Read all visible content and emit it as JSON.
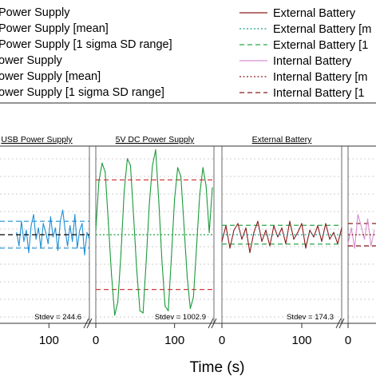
{
  "legend": {
    "left": [
      "Power Supply",
      "Power Supply [mean]",
      "Power Supply [1 sigma SD range]",
      "ower Supply",
      "ower Supply [mean]",
      "ower Supply [1 sigma SD range]"
    ],
    "right": [
      {
        "label": "External Battery",
        "color": "#8b1a1a",
        "style": "solid"
      },
      {
        "label": "External Battery [m",
        "color": "#1a9a8a",
        "style": "dotted"
      },
      {
        "label": "External Battery [1",
        "color": "#2aa84a",
        "style": "dashed"
      },
      {
        "label": "Internal Battery",
        "color": "#d78fd0",
        "style": "solid"
      },
      {
        "label": "Internal  Battery [m",
        "color": "#8b1a1a",
        "style": "dotted"
      },
      {
        "label": "Internal  Battery [1",
        "color": "#8b1a1a",
        "style": "dashed"
      }
    ]
  },
  "chart_data": {
    "type": "line",
    "xlabel": "Time (s)",
    "ylabel": "",
    "panels": [
      {
        "title": "USB Power Supply",
        "stdev_label": "Stdev = 244.6",
        "color": "#1f8fd6",
        "mean_color": "#000000",
        "range_color": "#1f8fd6",
        "xlim": [
          0,
          150
        ],
        "x_ticks": [
          100
        ],
        "y_mean": 0,
        "y_range": [
          -0.6,
          0.6
        ],
        "x": [
          60,
          63,
          66,
          69,
          72,
          75,
          78,
          81,
          84,
          87,
          90,
          93,
          96,
          99,
          102,
          105,
          108,
          111,
          114,
          117,
          120,
          123,
          126,
          129,
          132,
          135,
          138,
          141,
          144,
          147,
          150
        ],
        "values": [
          0.1,
          -0.5,
          0.6,
          -0.3,
          0.2,
          -0.8,
          0.4,
          0.9,
          -0.2,
          0.3,
          -0.6,
          0.5,
          0.1,
          -0.4,
          0.8,
          -0.1,
          0.3,
          -0.7,
          0.6,
          1.1,
          0.2,
          -0.5,
          0.4,
          -0.3,
          0.9,
          -0.6,
          0.2,
          0.5,
          -0.9,
          0.1,
          -0.2
        ]
      },
      {
        "title": "5V DC Power Supply",
        "stdev_label": "Stdev = 1002.9",
        "color": "#1a9a3a",
        "mean_color": "#1a9a3a",
        "range_color": "#d43a3a",
        "xlim": [
          0,
          150
        ],
        "x_ticks": [
          0,
          100
        ],
        "y_mean": 0,
        "y_range": [
          -2.45,
          2.45
        ],
        "x": [
          0,
          4,
          8,
          12,
          16,
          20,
          24,
          28,
          32,
          36,
          40,
          44,
          48,
          52,
          56,
          60,
          64,
          68,
          72,
          76,
          80,
          84,
          88,
          92,
          96,
          100,
          104,
          108,
          112,
          116,
          120,
          124,
          128,
          132,
          136,
          140,
          144,
          148
        ],
        "values": [
          0.2,
          2.4,
          3.2,
          2.8,
          0.5,
          -1.8,
          -3.6,
          -3.0,
          -0.8,
          1.9,
          3.4,
          3.1,
          0.8,
          -1.6,
          -3.4,
          -3.5,
          -1.2,
          1.4,
          3.1,
          3.8,
          1.5,
          -1.2,
          -3.2,
          -3.4,
          -1.0,
          1.6,
          3.0,
          2.6,
          0.4,
          -1.9,
          -3.3,
          -2.8,
          -0.5,
          1.8,
          3.0,
          2.2,
          0.1,
          2.1
        ]
      },
      {
        "title": "External Battery",
        "stdev_label": "Stdev = 174.3",
        "color": "#8b1a1a",
        "mean_color": "#1a9a8a",
        "range_color": "#2aa84a",
        "xlim": [
          0,
          150
        ],
        "x_ticks": [
          0,
          100
        ],
        "y_mean": 0,
        "y_range": [
          -0.42,
          0.42
        ],
        "x": [
          0,
          5,
          10,
          15,
          20,
          25,
          30,
          35,
          40,
          45,
          50,
          55,
          60,
          65,
          70,
          75,
          80,
          85,
          90,
          95,
          100,
          105,
          110,
          115,
          120,
          125,
          130,
          135,
          140,
          145,
          150
        ],
        "values": [
          -0.3,
          0.4,
          -0.6,
          0.2,
          0.5,
          -0.2,
          0.3,
          -0.8,
          0.1,
          0.6,
          -0.3,
          0.2,
          -0.5,
          0.4,
          -0.1,
          0.3,
          -0.4,
          0.6,
          -0.2,
          0.1,
          0.5,
          -0.6,
          0.2,
          -0.1,
          0.4,
          -0.3,
          0.5,
          -0.2,
          0.1,
          -0.4,
          0.3
        ]
      },
      {
        "title": "",
        "stdev_label": "",
        "color": "#d78fd0",
        "mean_color": "#8b1a1a",
        "range_color": "#8b1a1a",
        "xlim": [
          0,
          150
        ],
        "x_ticks": [
          0
        ],
        "y_mean": 0,
        "y_range": [
          -0.5,
          0.5
        ],
        "x": [
          0,
          4,
          8,
          12,
          16,
          20,
          24,
          28,
          32
        ],
        "values": [
          -0.4,
          0.3,
          -0.6,
          0.9,
          0.4,
          -0.2,
          0.7,
          -0.5,
          0.2
        ]
      }
    ]
  }
}
